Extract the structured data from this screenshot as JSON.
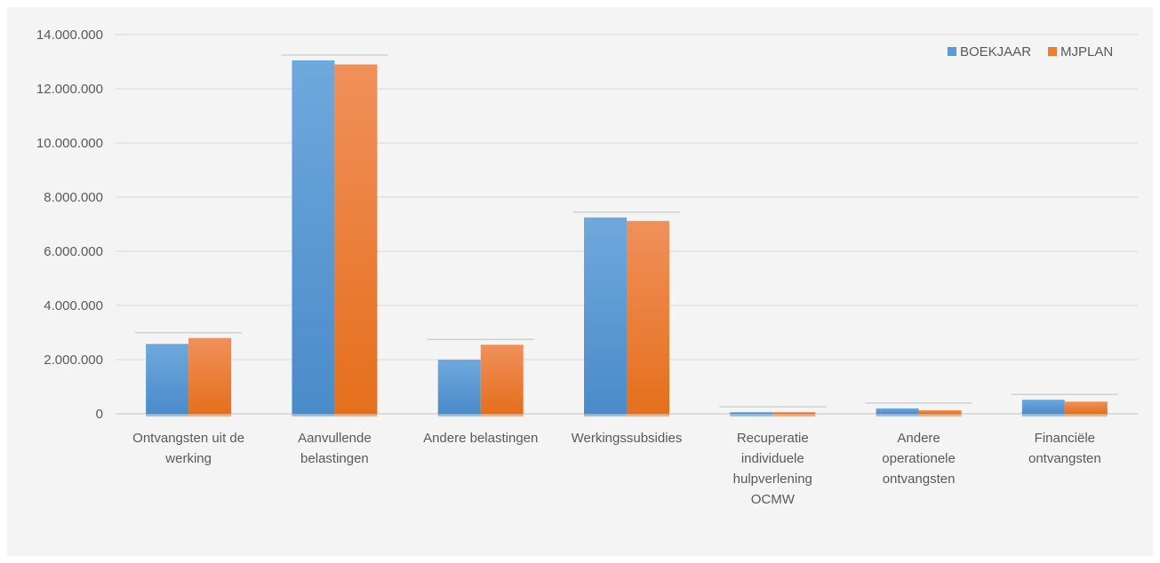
{
  "chart_data": {
    "type": "bar",
    "categories": [
      [
        "Ontvangsten uit de",
        "werking"
      ],
      [
        "Aanvullende",
        "belastingen"
      ],
      [
        "Andere belastingen"
      ],
      [
        "Werkingssubsidies"
      ],
      [
        "Recuperatie",
        "individuele",
        "hulpverlening",
        "OCMW"
      ],
      [
        "Andere",
        "operationele",
        "ontvangsten"
      ],
      [
        "Financiële",
        "ontvangsten"
      ]
    ],
    "series": [
      {
        "name": "BOEKJAAR",
        "color": "#5b9bd5",
        "values": [
          2580000,
          13050000,
          2000000,
          7250000,
          60000,
          200000,
          520000
        ]
      },
      {
        "name": "MJPLAN",
        "color": "#ed7d31",
        "values": [
          2800000,
          12900000,
          2550000,
          7120000,
          60000,
          130000,
          450000
        ]
      }
    ],
    "y_ticks": [
      "0",
      "2.000.000",
      "4.000.000",
      "6.000.000",
      "8.000.000",
      "10.000.000",
      "12.000.000",
      "14.000.000"
    ],
    "ylim": [
      0,
      14000000
    ],
    "grid": true,
    "legend_position": "top-right"
  }
}
